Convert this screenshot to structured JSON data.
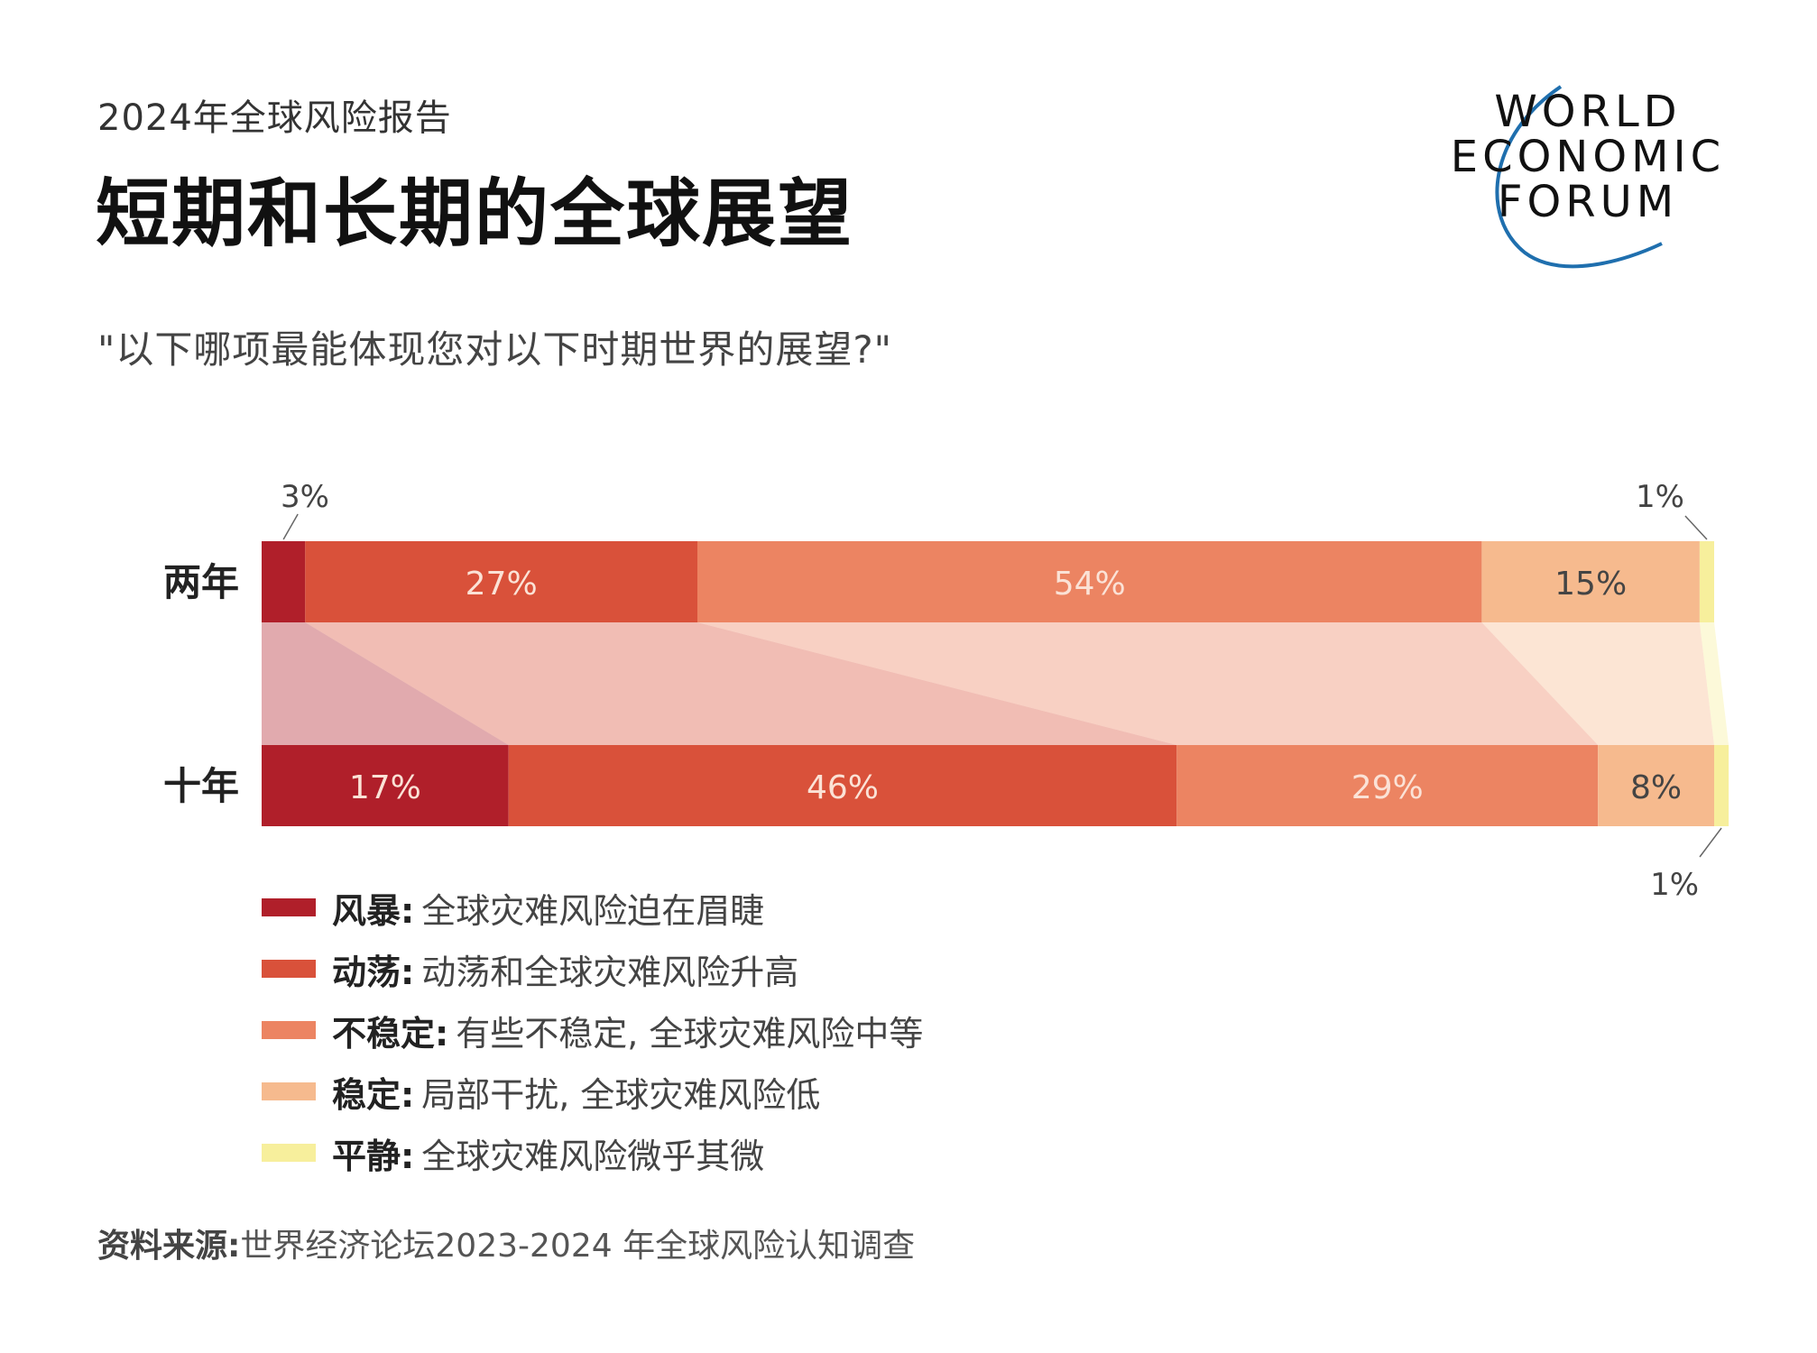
{
  "header": {
    "report_title": "2024年全球风险报告",
    "page_title": "短期和长期的全球展望",
    "question": "\"以下哪项最能体现您对以下时期世界的展望?\""
  },
  "logo": {
    "lines": [
      "WORLD",
      "ECONOMIC",
      "FORUM"
    ],
    "arc_color": "#1f6fae"
  },
  "chart_data": {
    "type": "bar",
    "orientation": "horizontal-stacked-100",
    "categories": [
      "两年",
      "十年"
    ],
    "series": [
      {
        "name": "风暴",
        "values": [
          3,
          17
        ],
        "color": "#b01f2a"
      },
      {
        "name": "动荡",
        "values": [
          27,
          46
        ],
        "color": "#d9513a"
      },
      {
        "name": "不稳定",
        "values": [
          54,
          29
        ],
        "color": "#ec8462"
      },
      {
        "name": "稳定",
        "values": [
          15,
          8
        ],
        "color": "#f6ba8e"
      },
      {
        "name": "平静",
        "values": [
          1,
          1
        ],
        "color": "#f7ef9c"
      }
    ],
    "data_labels": [
      [
        "3%",
        "27%",
        "54%",
        "15%",
        "1%"
      ],
      [
        "17%",
        "46%",
        "29%",
        "8%",
        "1%"
      ]
    ],
    "xlim": [
      0,
      100
    ],
    "grid": false,
    "legend_position": "bottom-left"
  },
  "legend": [
    {
      "term": "风暴:",
      "desc": "全球灾难风险迫在眉睫",
      "color": "#b01f2a"
    },
    {
      "term": "动荡:",
      "desc": "动荡和全球灾难风险升高",
      "color": "#d9513a"
    },
    {
      "term": "不稳定:",
      "desc": "有些不稳定, 全球灾难风险中等",
      "color": "#ec8462"
    },
    {
      "term": "稳定:",
      "desc": "局部干扰, 全球灾难风险低",
      "color": "#f6ba8e"
    },
    {
      "term": "平静:",
      "desc": "全球灾难风险微乎其微",
      "color": "#f7ef9c"
    }
  ],
  "source": {
    "label": "资料来源:",
    "text": "世界经济论坛2023-2024 年全球风险认知调查"
  }
}
